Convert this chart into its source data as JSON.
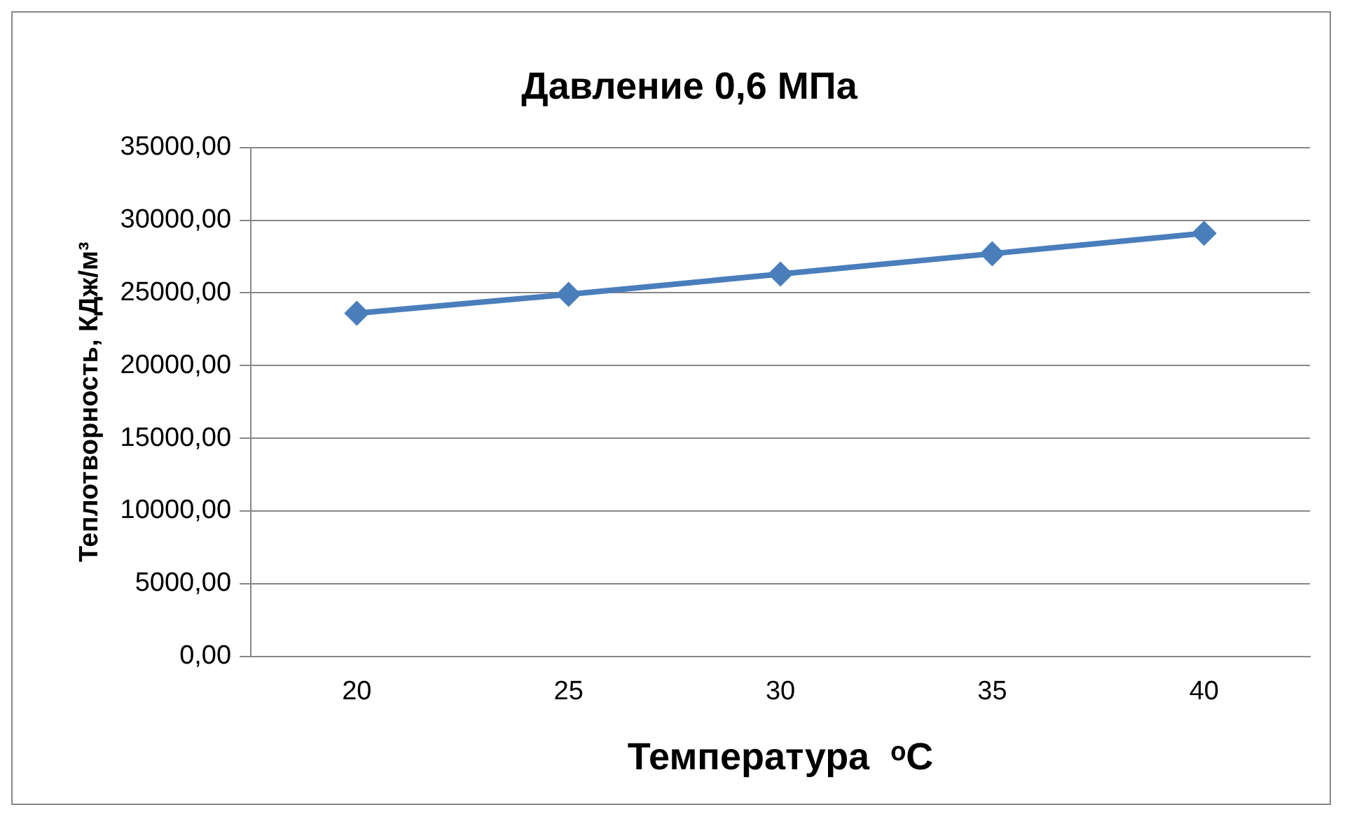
{
  "chart_data": {
    "type": "line",
    "title": "Давление 0,6 МПа",
    "xlabel": "Температура  ᵒC",
    "ylabel": "Теплотворность, КДж/м³",
    "categories": [
      "20",
      "25",
      "30",
      "35",
      "40"
    ],
    "series": [
      {
        "color": "#4a7ebb",
        "values": [
          23600,
          24900,
          26300,
          27700,
          29100
        ]
      }
    ],
    "ylim": [
      0,
      35000
    ],
    "yticks": [
      {
        "value": 0,
        "label": "0,00"
      },
      {
        "value": 5000,
        "label": "5000,00"
      },
      {
        "value": 10000,
        "label": "10000,00"
      },
      {
        "value": 15000,
        "label": "15000,00"
      },
      {
        "value": 20000,
        "label": "20000,00"
      },
      {
        "value": 25000,
        "label": "25000,00"
      },
      {
        "value": 30000,
        "label": "30000,00"
      },
      {
        "value": 35000,
        "label": "35000,00"
      }
    ],
    "grid": "y",
    "legend": false,
    "marker": "diamond",
    "line_style": "solid"
  }
}
